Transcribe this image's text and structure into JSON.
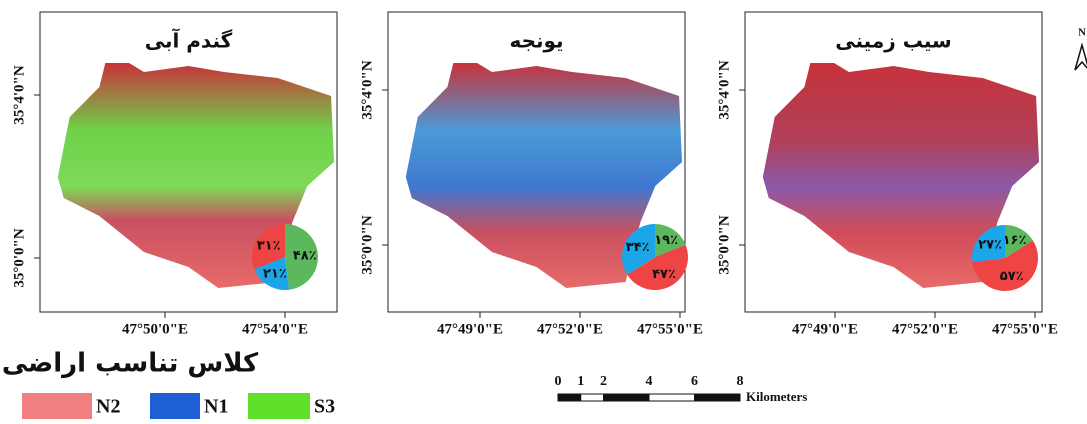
{
  "north": "N",
  "panels": [
    {
      "title": "گندم آبی",
      "y_labels": [
        "35°4'0\"N",
        "35°0'0\"N"
      ],
      "x_labels": [
        "47°50'0\"E",
        "47°54'0\"E"
      ],
      "pie": {
        "values": [
          48,
          21,
          31
        ],
        "value_labels": [
          "۴۸٪",
          "۲۱٪",
          "۳۱٪"
        ],
        "colors": [
          "#5cb85c",
          "#1aa6e8",
          "#ee4444"
        ]
      }
    },
    {
      "title": "یونجه",
      "y_labels": [
        "35°4'0\"N",
        "35°0'0\"N"
      ],
      "x_labels": [
        "47°49'0\"E",
        "47°52'0\"E",
        "47°55'0\"E"
      ],
      "pie": {
        "values": [
          19,
          47,
          34
        ],
        "value_labels": [
          "۱۹٪",
          "۴۷٪",
          "۳۴٪"
        ],
        "colors": [
          "#5cb85c",
          "#ee4444",
          "#1aa6e8"
        ]
      }
    },
    {
      "title": "سیب زمینی",
      "y_labels": [
        "35°4'0\"N",
        "35°0'0\"N"
      ],
      "x_labels": [
        "47°49'0\"E",
        "47°52'0\"E",
        "47°55'0\"E"
      ],
      "pie": {
        "values": [
          16,
          57,
          27
        ],
        "value_labels": [
          "۱۶٪",
          "۵۷٪",
          "۲۷٪"
        ],
        "colors": [
          "#5cb85c",
          "#ee4444",
          "#1aa6e8"
        ]
      }
    }
  ],
  "legend": {
    "title": "کلاس تناسب اراضی",
    "items": [
      {
        "label": "N2",
        "color": "#f08080"
      },
      {
        "label": "N1",
        "color": "#1f5fd6"
      },
      {
        "label": "S3",
        "color": "#5fe02a"
      }
    ]
  },
  "scale_bar": {
    "ticks": [
      0,
      1,
      2,
      4,
      6,
      8
    ],
    "unit": "Kilometers"
  }
}
